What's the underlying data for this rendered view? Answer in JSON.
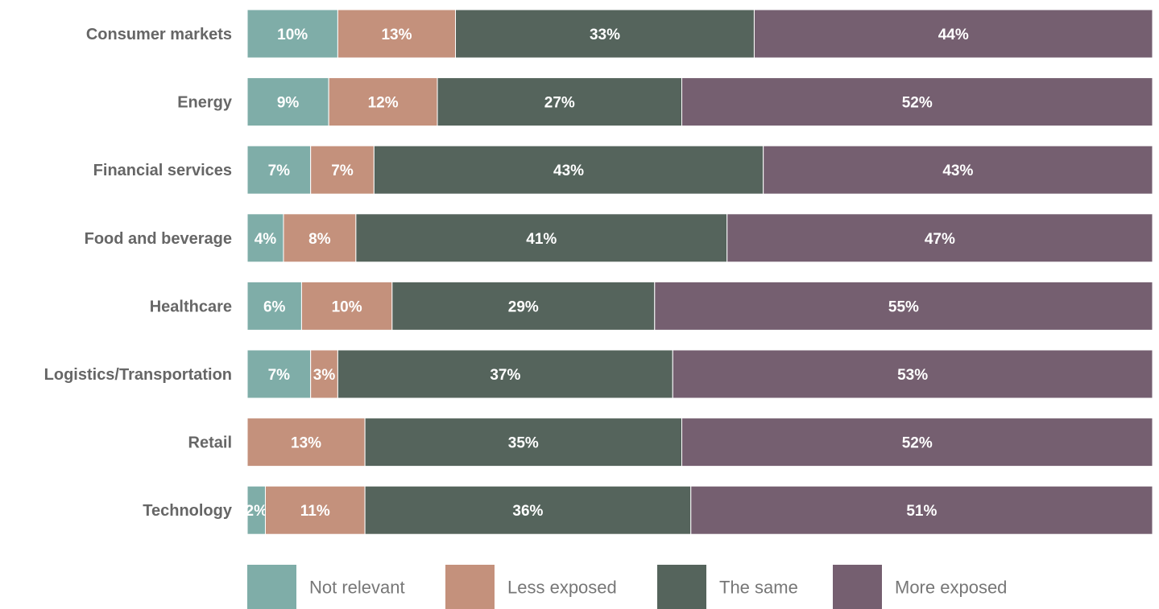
{
  "chart_data": {
    "type": "bar",
    "orientation": "horizontal",
    "stacked": true,
    "stack_mode": "percent",
    "categories": [
      "Consumer markets",
      "Energy",
      "Financial services",
      "Food and beverage",
      "Healthcare",
      "Logistics/Transportation",
      "Retail",
      "Technology"
    ],
    "series": [
      {
        "name": "Not relevant",
        "color": "#7fada8",
        "values": [
          10,
          9,
          7,
          4,
          6,
          7,
          0,
          2
        ]
      },
      {
        "name": "Less exposed",
        "color": "#c4917c",
        "values": [
          13,
          12,
          7,
          8,
          10,
          3,
          13,
          11
        ]
      },
      {
        "name": "The same",
        "color": "#55645c",
        "values": [
          33,
          27,
          43,
          41,
          29,
          37,
          35,
          36
        ]
      },
      {
        "name": "More exposed",
        "color": "#755f70",
        "values": [
          44,
          52,
          43,
          47,
          55,
          53,
          52,
          51
        ]
      }
    ],
    "value_suffix": "%",
    "legend_position": "bottom",
    "grid": false
  }
}
